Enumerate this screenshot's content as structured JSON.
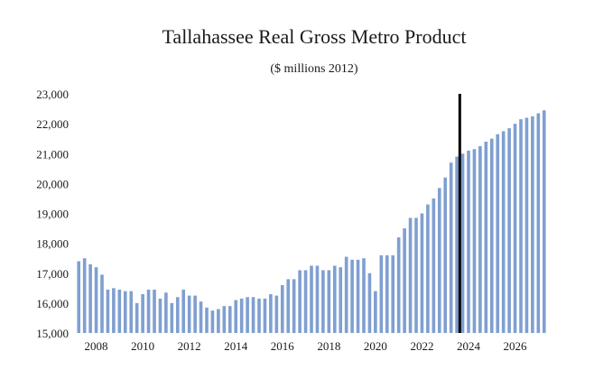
{
  "chart_data": {
    "type": "bar",
    "title": "Tallahassee Real Gross Metro Product",
    "subtitle": "($ millions 2012)",
    "xlabel": "",
    "ylabel": "",
    "ylim": [
      15000,
      23000
    ],
    "y_ticks": [
      "15,000",
      "16,000",
      "17,000",
      "18,000",
      "19,000",
      "20,000",
      "21,000",
      "22,000",
      "23,000"
    ],
    "x_ticks": [
      "2008",
      "2010",
      "2012",
      "2014",
      "2016",
      "2018",
      "2020",
      "2022",
      "2024",
      "2026"
    ],
    "grid": false,
    "bar_color": "#7f9fd1",
    "marker_color": "#000000",
    "marker_position": "2023Q3",
    "categories": [
      "2007Q2",
      "2007Q3",
      "2007Q4",
      "2008Q1",
      "2008Q2",
      "2008Q3",
      "2008Q4",
      "2009Q1",
      "2009Q2",
      "2009Q3",
      "2009Q4",
      "2010Q1",
      "2010Q2",
      "2010Q3",
      "2010Q4",
      "2011Q1",
      "2011Q2",
      "2011Q3",
      "2011Q4",
      "2012Q1",
      "2012Q2",
      "2012Q3",
      "2012Q4",
      "2013Q1",
      "2013Q2",
      "2013Q3",
      "2013Q4",
      "2014Q1",
      "2014Q2",
      "2014Q3",
      "2014Q4",
      "2015Q1",
      "2015Q2",
      "2015Q3",
      "2015Q4",
      "2016Q1",
      "2016Q2",
      "2016Q3",
      "2016Q4",
      "2017Q1",
      "2017Q2",
      "2017Q3",
      "2017Q4",
      "2018Q1",
      "2018Q2",
      "2018Q3",
      "2018Q4",
      "2019Q1",
      "2019Q2",
      "2019Q3",
      "2019Q4",
      "2020Q1",
      "2020Q2",
      "2020Q3",
      "2020Q4",
      "2021Q1",
      "2021Q2",
      "2021Q3",
      "2021Q4",
      "2022Q1",
      "2022Q2",
      "2022Q3",
      "2022Q4",
      "2023Q1",
      "2023Q2",
      "2023Q3",
      "2023Q4",
      "2024Q1",
      "2024Q2",
      "2024Q3",
      "2024Q4",
      "2025Q1",
      "2025Q2",
      "2025Q3",
      "2025Q4",
      "2026Q1",
      "2026Q2",
      "2026Q3",
      "2026Q4",
      "2027Q1",
      "2027Q2"
    ],
    "values": [
      17400,
      17500,
      17300,
      17200,
      16950,
      16450,
      16500,
      16450,
      16400,
      16400,
      16000,
      16300,
      16450,
      16450,
      16150,
      16350,
      16000,
      16200,
      16450,
      16250,
      16250,
      16050,
      15850,
      15750,
      15800,
      15900,
      15900,
      16100,
      16150,
      16200,
      16200,
      16150,
      16150,
      16300,
      16250,
      16600,
      16800,
      16800,
      17100,
      17100,
      17250,
      17250,
      17100,
      17100,
      17250,
      17200,
      17550,
      17450,
      17450,
      17500,
      17000,
      16400,
      17600,
      17600,
      17600,
      18200,
      18500,
      18850,
      18850,
      19000,
      19300,
      19500,
      19850,
      20200,
      20700,
      20900,
      21000,
      21100,
      21150,
      21250,
      21400,
      21500,
      21650,
      21750,
      21850,
      22000,
      22150,
      22200,
      22250,
      22350,
      22450
    ]
  }
}
